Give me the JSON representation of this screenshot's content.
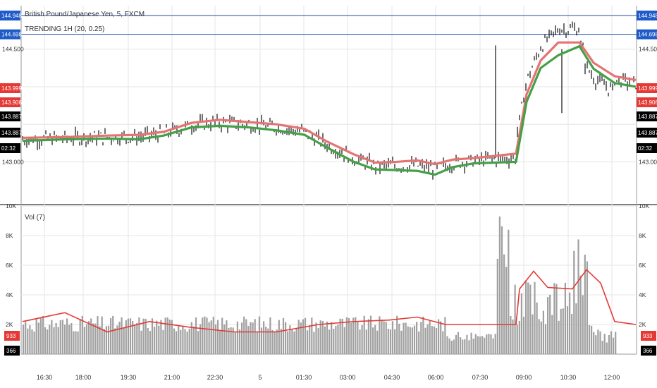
{
  "chart_data": {
    "type": "line",
    "title": "British Pound/Japanese Yen, 5, FXCM",
    "indicator": "TRENDING 1H (20, 0.25)",
    "volume_label": "Vol (7)",
    "x_ticks": [
      "16:30",
      "18:00",
      "19:30",
      "21:00",
      "22:30",
      "5",
      "01:30",
      "03:00",
      "04:30",
      "06:00",
      "07:30",
      "09:00",
      "10:30",
      "12:00"
    ],
    "price_axis": {
      "range": [
        142.45,
        145.08
      ],
      "ticks": [
        "144.500",
        "143.000"
      ],
      "tick_values": [
        144.5,
        143.0
      ]
    },
    "volume_axis": {
      "range": [
        0,
        10000
      ],
      "ticks": [
        "10K",
        "8K",
        "6K",
        "4K",
        "2K"
      ],
      "tick_values": [
        10000,
        8000,
        6000,
        4000,
        2000
      ]
    },
    "levels": [
      {
        "label": "144.948",
        "value": 144.948
      },
      {
        "label": "144.698",
        "value": 144.698
      }
    ],
    "price_badges": [
      {
        "label": "143.999",
        "value": 143.999,
        "color": "#e53935"
      },
      {
        "label": "143.906",
        "value": 143.906,
        "color": "#e53935"
      },
      {
        "label": "143.887",
        "value": 143.887,
        "color": "#000000"
      },
      {
        "label": "143.887",
        "value": 143.887,
        "color": "#000000"
      },
      {
        "label": "02:32",
        "value": 143.62,
        "color": "#000000"
      }
    ],
    "volume_badges": [
      {
        "label": "933",
        "value": 933,
        "color": "#e53935"
      },
      {
        "label": "366",
        "value": 366,
        "color": "#000000"
      }
    ],
    "series": [
      {
        "name": "red_band",
        "color": "#e57373",
        "points": [
          [
            0,
            143.32
          ],
          [
            60,
            143.33
          ],
          [
            120,
            143.35
          ],
          [
            165,
            143.36
          ],
          [
            200,
            143.4
          ],
          [
            240,
            143.52
          ],
          [
            280,
            143.56
          ],
          [
            320,
            143.53
          ],
          [
            360,
            143.5
          ],
          [
            400,
            143.44
          ],
          [
            430,
            143.28
          ],
          [
            470,
            143.1
          ],
          [
            500,
            142.99
          ],
          [
            530,
            143.0
          ],
          [
            560,
            143.02
          ],
          [
            585,
            142.97
          ],
          [
            610,
            143.03
          ],
          [
            640,
            143.05
          ],
          [
            670,
            143.08
          ],
          [
            700,
            143.11
          ],
          [
            715,
            143.9
          ],
          [
            735,
            144.35
          ],
          [
            760,
            144.59
          ],
          [
            790,
            144.59
          ],
          [
            810,
            144.32
          ],
          [
            840,
            144.14
          ],
          [
            870,
            144.09
          ]
        ]
      },
      {
        "name": "green_band",
        "color": "#43a047",
        "points": [
          [
            0,
            143.28
          ],
          [
            60,
            143.3
          ],
          [
            120,
            143.31
          ],
          [
            165,
            143.3
          ],
          [
            200,
            143.35
          ],
          [
            240,
            143.46
          ],
          [
            280,
            143.48
          ],
          [
            320,
            143.46
          ],
          [
            360,
            143.42
          ],
          [
            400,
            143.36
          ],
          [
            430,
            143.2
          ],
          [
            470,
            143.0
          ],
          [
            500,
            142.9
          ],
          [
            530,
            142.89
          ],
          [
            560,
            142.88
          ],
          [
            585,
            142.83
          ],
          [
            610,
            142.93
          ],
          [
            640,
            142.98
          ],
          [
            670,
            142.99
          ],
          [
            700,
            143.0
          ],
          [
            715,
            143.8
          ],
          [
            735,
            144.25
          ],
          [
            760,
            144.42
          ],
          [
            790,
            144.54
          ],
          [
            810,
            144.24
          ],
          [
            840,
            144.05
          ],
          [
            870,
            144.0
          ]
        ]
      }
    ],
    "volume_ma": [
      [
        0,
        0.22
      ],
      [
        60,
        0.28
      ],
      [
        120,
        0.15
      ],
      [
        180,
        0.22
      ],
      [
        240,
        0.18
      ],
      [
        300,
        0.15
      ],
      [
        360,
        0.15
      ],
      [
        420,
        0.2
      ],
      [
        470,
        0.22
      ],
      [
        520,
        0.23
      ],
      [
        560,
        0.25
      ],
      [
        600,
        0.2
      ],
      [
        650,
        0.2
      ],
      [
        700,
        0.2
      ],
      [
        705,
        0.44
      ],
      [
        725,
        0.56
      ],
      [
        745,
        0.45
      ],
      [
        780,
        0.44
      ],
      [
        800,
        0.57
      ],
      [
        820,
        0.48
      ],
      [
        840,
        0.22
      ],
      [
        870,
        0.2
      ]
    ],
    "volume_ma_name": "Vol (7)"
  }
}
